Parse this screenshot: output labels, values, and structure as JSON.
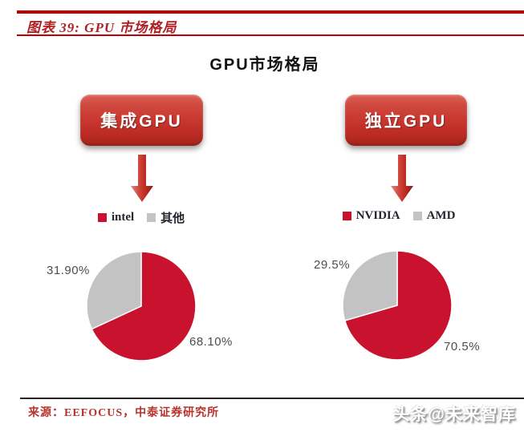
{
  "figure_header": {
    "title": "图表 39: GPU 市场格局"
  },
  "chart_title": "GPU市场格局",
  "panels": [
    {
      "node_label": "集成GPU"
    },
    {
      "node_label": "独立GPU"
    }
  ],
  "chart_data": [
    {
      "type": "pie",
      "title": "集成GPU",
      "legend": [
        "intel",
        "其他"
      ],
      "values": [
        68.1,
        31.9
      ],
      "labels": [
        "68.10%",
        "31.90%"
      ],
      "colors": [
        "#C9132E",
        "#C3C3C3"
      ],
      "start_angle_deg": 0,
      "direction": "clockwise",
      "legend_position": "top"
    },
    {
      "type": "pie",
      "title": "独立GPU",
      "legend": [
        "NVIDIA",
        "AMD"
      ],
      "values": [
        70.5,
        29.5
      ],
      "labels": [
        "70.5%",
        "29.5%"
      ],
      "colors": [
        "#C9132E",
        "#C3C3C3"
      ],
      "start_angle_deg": 0,
      "direction": "clockwise",
      "legend_position": "top"
    }
  ],
  "footer": {
    "source": "来源：EEFOCUS，中泰证券研究所",
    "watermark": "头条@未来智库"
  },
  "colors": {
    "accent_red": "#C00000",
    "header_text_red": "#B01F24",
    "pie_red": "#C9132E",
    "pie_gray": "#C3C3C3",
    "label_gray": "#4D4D4D"
  }
}
